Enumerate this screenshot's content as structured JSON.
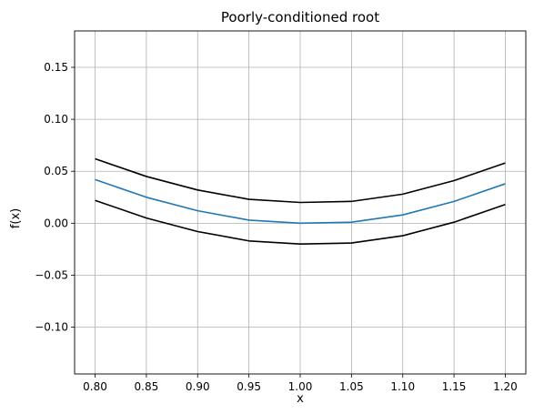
{
  "chart_data": {
    "type": "line",
    "title": "Poorly-conditioned root",
    "xlabel": "x",
    "ylabel": "f(x)",
    "xlim": [
      0.78,
      1.22
    ],
    "ylim": [
      -0.145,
      0.185
    ],
    "grid": true,
    "xticks": [
      0.8,
      0.85,
      0.9,
      0.95,
      1.0,
      1.05,
      1.1,
      1.15,
      1.2
    ],
    "xtick_labels": [
      "0.80",
      "0.85",
      "0.90",
      "0.95",
      "1.00",
      "1.05",
      "1.10",
      "1.15",
      "1.20"
    ],
    "yticks": [
      -0.1,
      -0.05,
      0.0,
      0.05,
      0.1,
      0.15
    ],
    "ytick_labels": [
      "−0.10",
      "−0.05",
      "0.00",
      "0.05",
      "0.10",
      "0.15"
    ],
    "series": [
      {
        "color": "#1f77b4",
        "x": [
          0.8,
          0.85,
          0.9,
          0.95,
          1.0,
          1.05,
          1.1,
          1.15,
          1.2
        ],
        "y": [
          0.042,
          0.025,
          0.012,
          0.003,
          0.0,
          0.001,
          0.008,
          0.021,
          0.038
        ]
      },
      {
        "color": "#000000",
        "x": [
          0.8,
          0.85,
          0.9,
          0.95,
          1.0,
          1.05,
          1.1,
          1.15,
          1.2
        ],
        "y": [
          0.062,
          0.045,
          0.032,
          0.023,
          0.02,
          0.021,
          0.028,
          0.041,
          0.058
        ]
      },
      {
        "color": "#000000",
        "x": [
          0.8,
          0.85,
          0.9,
          0.95,
          1.0,
          1.05,
          1.1,
          1.15,
          1.2
        ],
        "y": [
          0.022,
          0.005,
          -0.008,
          -0.017,
          -0.02,
          -0.019,
          -0.012,
          0.001,
          0.018
        ]
      }
    ]
  }
}
